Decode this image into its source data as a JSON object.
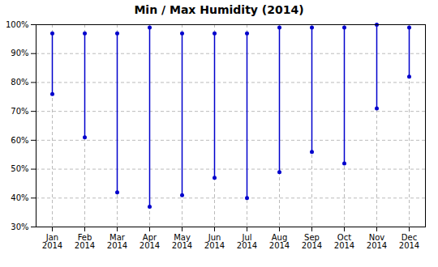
{
  "chart_data": {
    "type": "range",
    "title": "Min / Max Humidity (2014)",
    "categories": [
      "Jan\n2014",
      "Feb\n2014",
      "Mar\n2014",
      "Apr\n2014",
      "May\n2014",
      "Jun\n2014",
      "Jul\n2014",
      "Aug\n2014",
      "Sep\n2014",
      "Oct\n2014",
      "Nov\n2014",
      "Dec\n2014"
    ],
    "max_values": [
      0.97,
      0.97,
      0.97,
      0.99,
      0.97,
      0.97,
      0.97,
      0.99,
      0.99,
      0.99,
      1.0,
      0.99
    ],
    "min_values": [
      0.76,
      0.61,
      0.42,
      0.37,
      0.41,
      0.47,
      0.4,
      0.49,
      0.56,
      0.52,
      0.71,
      0.82
    ],
    "color": "#0000cc",
    "ylim": [
      0.3,
      1.0
    ],
    "yticks": [
      {
        "value": 0.3,
        "label": "30%"
      },
      {
        "value": 0.4,
        "label": "40%"
      },
      {
        "value": 0.5,
        "label": "50%"
      },
      {
        "value": 0.6,
        "label": "60%"
      },
      {
        "value": 0.7,
        "label": "70%"
      },
      {
        "value": 0.8,
        "label": "80%"
      },
      {
        "value": 0.9,
        "label": "90%"
      },
      {
        "value": 1.0,
        "label": "100%"
      }
    ],
    "grid": true
  }
}
